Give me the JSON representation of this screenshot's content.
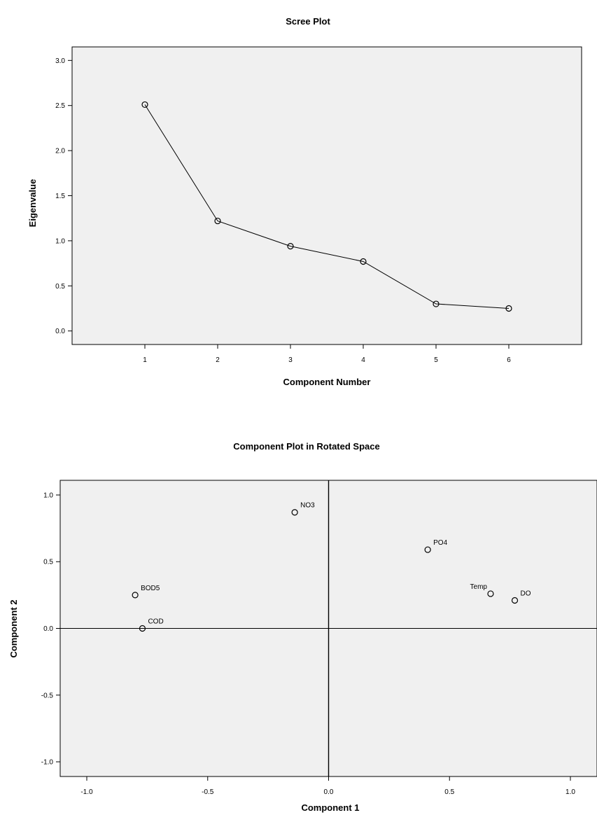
{
  "chart_data": [
    {
      "type": "line",
      "title": "Scree Plot",
      "xlabel": "Component Number",
      "ylabel": "Eigenvalue",
      "x": [
        1,
        2,
        3,
        4,
        5,
        6
      ],
      "values": [
        2.51,
        1.22,
        0.94,
        0.77,
        0.3,
        0.25
      ],
      "xlim": [
        0,
        7
      ],
      "ylim": [
        -0.15,
        3.15
      ],
      "xticks": [
        "1",
        "2",
        "3",
        "4",
        "5",
        "6"
      ],
      "yticks": [
        "0.0",
        "0.5",
        "1.0",
        "1.5",
        "2.0",
        "2.5",
        "3.0"
      ],
      "marker": "open-circle",
      "grid": false,
      "plot_background": "#f0f0f0"
    },
    {
      "type": "scatter",
      "title": "Component Plot in Rotated Space",
      "xlabel": "Component 1",
      "ylabel": "Component 2",
      "points": [
        {
          "label": "NO3",
          "x": -0.14,
          "y": 0.87
        },
        {
          "label": "PO4",
          "x": 0.41,
          "y": 0.59
        },
        {
          "label": "BOD5",
          "x": -0.8,
          "y": 0.25
        },
        {
          "label": "Temp",
          "x": 0.67,
          "y": 0.26
        },
        {
          "label": "DO",
          "x": 0.77,
          "y": 0.21
        },
        {
          "label": "COD",
          "x": -0.77,
          "y": 0.0
        }
      ],
      "xlim": [
        -1.11,
        1.11
      ],
      "ylim": [
        -1.11,
        1.11
      ],
      "xticks": [
        "-1.0",
        "-0.5",
        "0.0",
        "0.5",
        "1.0"
      ],
      "yticks": [
        "-1.0",
        "-0.5",
        "0.0",
        "0.5",
        "1.0"
      ],
      "reference_lines": {
        "x": 0,
        "y": 0
      },
      "marker": "open-circle",
      "grid": false,
      "plot_background": "#f0f0f0"
    }
  ]
}
